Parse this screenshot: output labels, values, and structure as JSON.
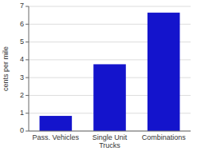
{
  "chart_data": {
    "type": "bar",
    "categories": [
      "Pass. Vehicles",
      "Single Unit Trucks",
      "Combinations"
    ],
    "values": [
      0.85,
      3.75,
      6.65
    ],
    "color": "#1414cc",
    "ylabel": "cents per mile",
    "ylim": [
      0,
      7
    ],
    "yticks": [
      0,
      1,
      2,
      3,
      4,
      5,
      6,
      7
    ],
    "grid": true
  }
}
